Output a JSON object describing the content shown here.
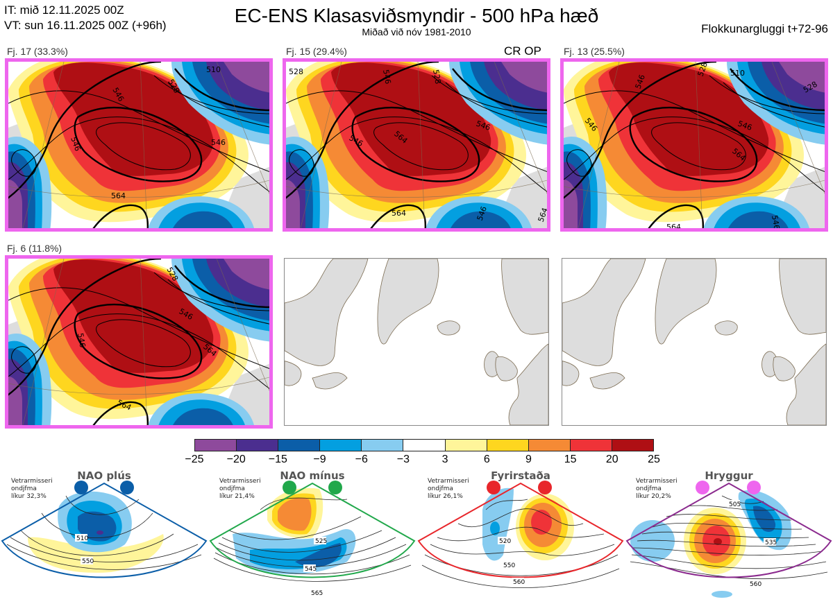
{
  "header": {
    "init_time": "IT: mið 12.11.2025 00Z",
    "valid_time": "VT: sun 16.11.2025 00Z  (+96h)",
    "title": "EC-ENS Klasasviðsmyndir - 500 hPa hæð",
    "subtitle": "Miðað við nóv 1981-2010",
    "window": "Flokkunargluggi t+72-96",
    "cr_op": "CR OP"
  },
  "panels": [
    {
      "label": "Fj. 17 (33.3%)",
      "contours": [
        "546",
        "528",
        "510",
        "546",
        "546",
        "564"
      ]
    },
    {
      "label": "Fj. 15 (29.4%)",
      "contours": [
        "528",
        "546",
        "528",
        "546",
        "564",
        "546",
        "564",
        "546",
        "564"
      ]
    },
    {
      "label": "Fj. 13 (25.5%)",
      "contours": [
        "546",
        "528",
        "510",
        "528",
        "546",
        "546",
        "564",
        "564",
        "546"
      ]
    },
    {
      "label": "Fj. 6 (11.8%)",
      "contours": [
        "528",
        "546",
        "546",
        "564",
        "564"
      ]
    }
  ],
  "colorbar": {
    "ticks": [
      "−25",
      "−20",
      "−15",
      "−9",
      "−6",
      "−3",
      "3",
      "6",
      "9",
      "15",
      "20",
      "25"
    ],
    "colors": [
      "#8e4a9c",
      "#4b2e8f",
      "#0b5ea8",
      "#039fe0",
      "#87ccf0",
      "#ffffff",
      "#fff59a",
      "#fed61f",
      "#f58a35",
      "#ef3338",
      "#af0f14"
    ]
  },
  "regimes": [
    {
      "title": "NAO plús",
      "info": [
        "Vetrarmisseri",
        "ondjfma",
        "líkur 32,3%"
      ],
      "color": "#0b5ea8",
      "contours": [
        "510",
        "550"
      ]
    },
    {
      "title": "NAO mínus",
      "info": [
        "Vetrarmisseri",
        "ondjfma",
        "líkur 21,4%"
      ],
      "color": "#21a84b",
      "contours": [
        "525",
        "545",
        "565"
      ]
    },
    {
      "title": "Fyrirstaða",
      "info": [
        "Vetrarmisseri",
        "ondjfma",
        "líkur 26,1%"
      ],
      "color": "#e8262b",
      "contours": [
        "520",
        "550",
        "560"
      ]
    },
    {
      "title": "Hryggur",
      "info": [
        "Vetrarmisseri",
        "ondjfma",
        "líkur 20,2%"
      ],
      "color": "#8b2a8e",
      "dot_color": "#ee66ee",
      "contours": [
        "505",
        "535",
        "560"
      ]
    }
  ]
}
